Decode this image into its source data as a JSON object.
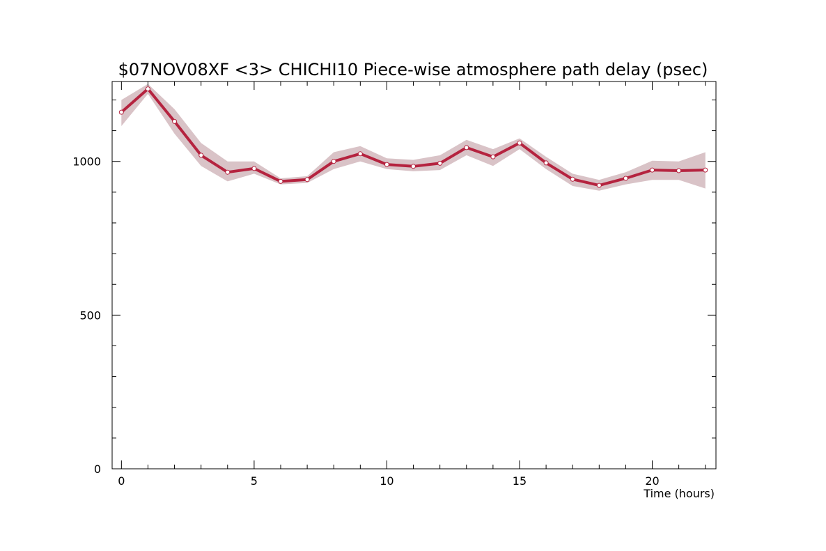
{
  "chart_data": {
    "type": "line",
    "title": "$07NOV08XF <3>  CHICHI10  Piece-wise atmosphere path delay (psec)",
    "xlabel": "Time (hours)",
    "ylabel": "",
    "xlim": [
      -0.35,
      22.4
    ],
    "ylim": [
      0,
      1260
    ],
    "x_ticks": [
      0,
      5,
      10,
      15,
      20
    ],
    "y_ticks": [
      0,
      500,
      1000
    ],
    "x_minor_step": 1,
    "y_minor_step": 100,
    "grid": false,
    "colors": {
      "line": "#b5233f",
      "band": "#d9c3c7",
      "marker_fill": "#ffffff",
      "axis": "#000000"
    },
    "series": [
      {
        "x": [
          0,
          1,
          2,
          3,
          4,
          5,
          6,
          7,
          8,
          9,
          10,
          11,
          12,
          13,
          14,
          15,
          16,
          17,
          18,
          19,
          20,
          21,
          22
        ],
        "values": [
          1160,
          1236,
          1130,
          1020,
          965,
          977,
          935,
          941,
          1000,
          1025,
          990,
          984,
          994,
          1045,
          1015,
          1060,
          995,
          942,
          922,
          945,
          972,
          970,
          972
        ],
        "lower": [
          1115,
          1220,
          1090,
          985,
          935,
          960,
          925,
          930,
          975,
          1000,
          975,
          968,
          972,
          1020,
          985,
          1040,
          975,
          920,
          905,
          925,
          940,
          940,
          912
        ],
        "upper": [
          1200,
          1252,
          1170,
          1060,
          1000,
          1000,
          945,
          952,
          1030,
          1050,
          1010,
          1005,
          1020,
          1070,
          1040,
          1075,
          1015,
          960,
          940,
          965,
          1002,
          1000,
          1030
        ]
      }
    ]
  }
}
